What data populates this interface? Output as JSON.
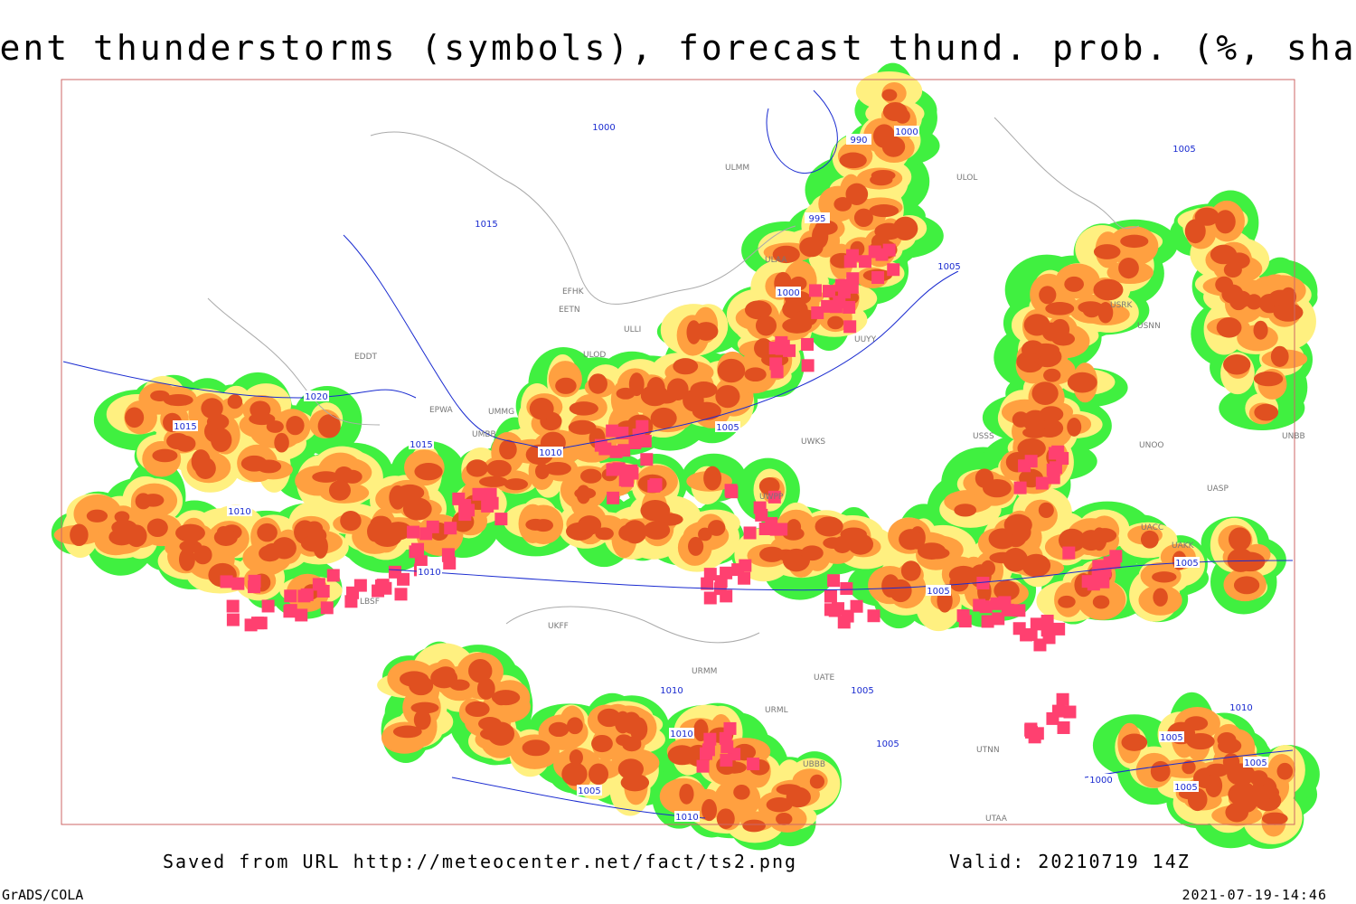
{
  "header": {
    "title": "Current thunderstorms (symbols), forecast thund. prob. (%, shaded)"
  },
  "isobar_labels": [
    "1000",
    "990",
    "1000",
    "1015",
    "995",
    "1005",
    "1000",
    "1005",
    "1020",
    "1015",
    "1015",
    "1010",
    "1005",
    "1010",
    "1010",
    "1005",
    "1005",
    "1010",
    "1005",
    "1010",
    "1005",
    "1010",
    "1005",
    "1000",
    "1005",
    "1005",
    "1005",
    "1010"
  ],
  "station_labels": [
    "EFHK",
    "EETN",
    "ULLI",
    "ULOD",
    "EDDT",
    "EPWA",
    "UMMG",
    "UMBB",
    "ULAA",
    "ULMM",
    "ULOL",
    "UUYY",
    "USSS",
    "UWKS",
    "UWPP",
    "LBSF",
    "UKFF",
    "URMM",
    "URML",
    "UATE",
    "UTNN",
    "UTAA",
    "USNN",
    "USRK",
    "UNOO",
    "UASP",
    "UACC",
    "UAKK",
    "UNBB",
    "UBBB"
  ],
  "footer": {
    "source": "Saved from URL http://meteocenter.net/fact/ts2.png",
    "valid": "Valid: 20210719 14Z",
    "software": "GrADS/COLA",
    "timestamp": "2021-07-19-14:46"
  }
}
